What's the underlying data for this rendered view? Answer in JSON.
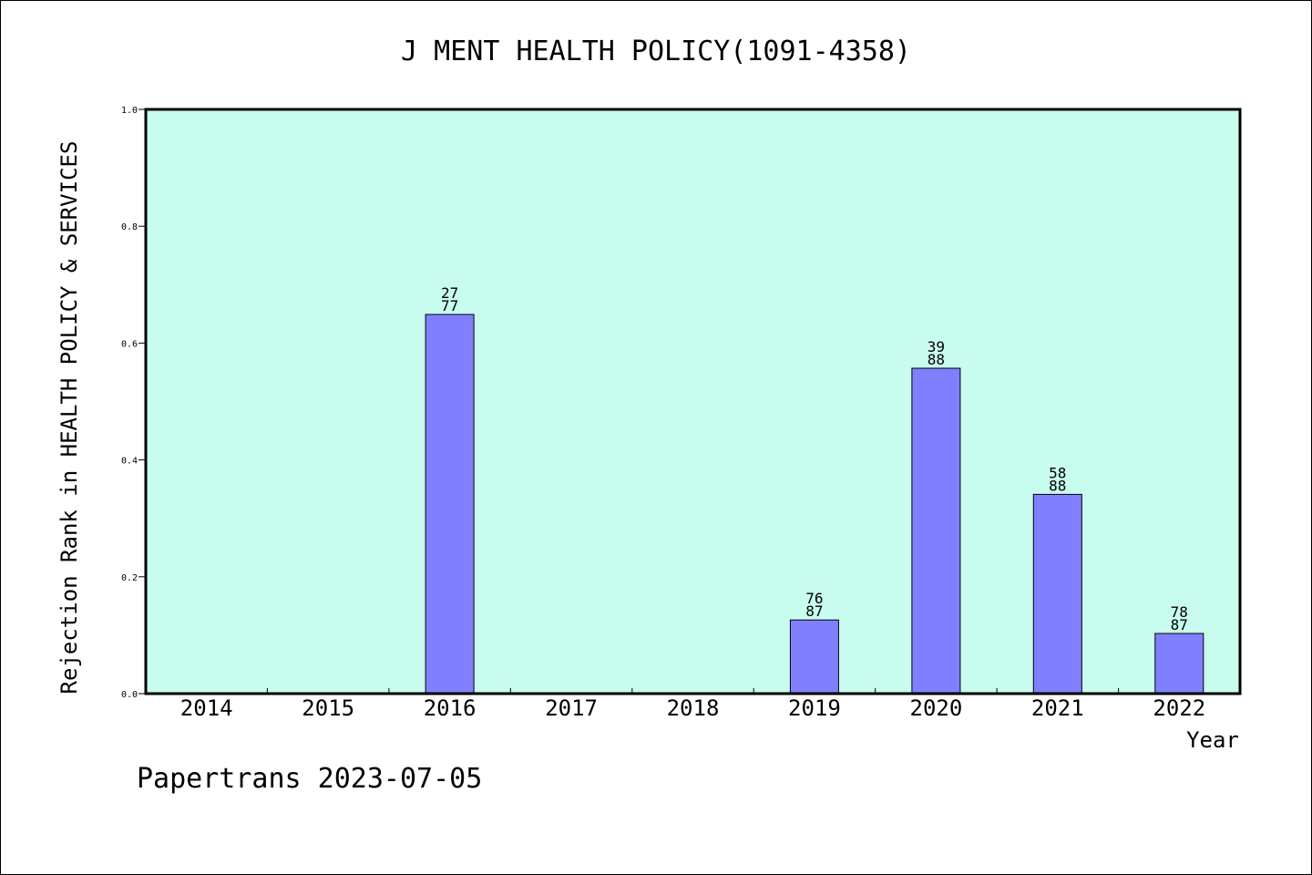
{
  "chart_data": {
    "type": "bar",
    "title": "J MENT HEALTH POLICY(1091-4358)",
    "xlabel": "Year",
    "ylabel": "Rejection Rank in HEALTH POLICY & SERVICES",
    "categories": [
      "2014",
      "2015",
      "2016",
      "2017",
      "2018",
      "2019",
      "2020",
      "2021",
      "2022"
    ],
    "values": [
      0,
      0,
      0.649,
      0,
      0,
      0.126,
      0.557,
      0.341,
      0.103
    ],
    "bar_labels": [
      null,
      null,
      [
        "27",
        "77"
      ],
      null,
      null,
      [
        "76",
        "87"
      ],
      [
        "39",
        "88"
      ],
      [
        "58",
        "88"
      ],
      [
        "78",
        "87"
      ]
    ],
    "ylim": [
      0,
      1.0
    ],
    "yticks": [
      "0.0",
      "0.2",
      "0.4",
      "0.6",
      "0.8",
      "1.0"
    ],
    "grid": false,
    "colors": {
      "plot_background": "#c8fcee",
      "bar_fill": "#8080ff",
      "bar_stroke": "#000000"
    }
  },
  "footer": {
    "text": "Papertrans 2023-07-05"
  }
}
